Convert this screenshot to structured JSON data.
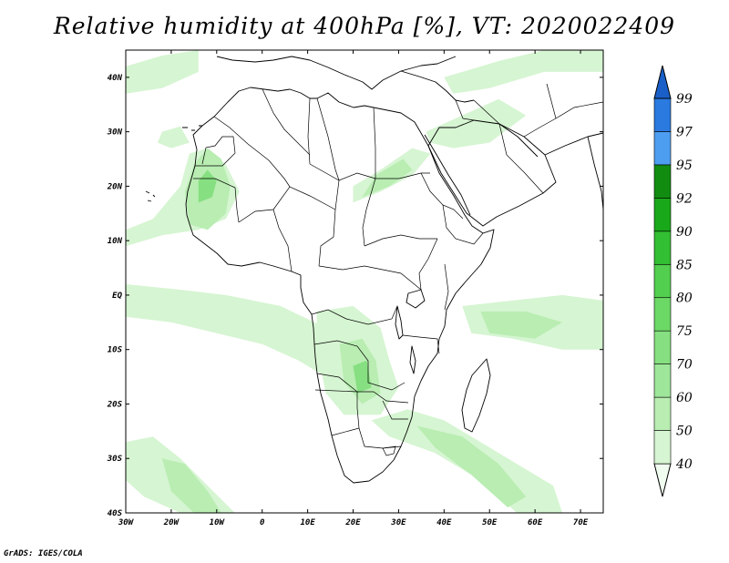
{
  "title": "Relative humidity at 400hPa [%], VT: 2020022409",
  "credit": "GrADS: IGES/COLA",
  "map": {
    "lon_range": [
      -30,
      75
    ],
    "lat_range": [
      -40,
      45
    ],
    "lon_ticks": [
      {
        "value": -30,
        "label": "30W"
      },
      {
        "value": -20,
        "label": "20W"
      },
      {
        "value": -10,
        "label": "10W"
      },
      {
        "value": 0,
        "label": "0"
      },
      {
        "value": 10,
        "label": "10E"
      },
      {
        "value": 20,
        "label": "20E"
      },
      {
        "value": 30,
        "label": "30E"
      },
      {
        "value": 40,
        "label": "40E"
      },
      {
        "value": 50,
        "label": "50E"
      },
      {
        "value": 60,
        "label": "60E"
      },
      {
        "value": 70,
        "label": "70E"
      }
    ],
    "lat_ticks": [
      {
        "value": 40,
        "label": "40N"
      },
      {
        "value": 30,
        "label": "30N"
      },
      {
        "value": 20,
        "label": "20N"
      },
      {
        "value": 10,
        "label": "10N"
      },
      {
        "value": 0,
        "label": "EQ"
      },
      {
        "value": -10,
        "label": "10S"
      },
      {
        "value": -20,
        "label": "20S"
      },
      {
        "value": -30,
        "label": "30S"
      },
      {
        "value": -40,
        "label": "40S"
      }
    ]
  },
  "colorbar": {
    "levels": [
      "40",
      "50",
      "60",
      "70",
      "75",
      "80",
      "85",
      "90",
      "92",
      "95",
      "97",
      "99"
    ],
    "colors": [
      "#f0fcef",
      "#d6f5d2",
      "#b9edb2",
      "#9ee69a",
      "#86df80",
      "#6cd866",
      "#52cf4e",
      "#33bf33",
      "#19a819",
      "#118c11",
      "#4d9ef0",
      "#2a7ae0",
      "#1a5fc8"
    ]
  },
  "humid_regions": [
    {
      "color": "#d6f5d2",
      "pts": [
        [
          -30,
          -4
        ],
        [
          -20,
          -5
        ],
        [
          -10,
          -7
        ],
        [
          0,
          -9
        ],
        [
          8,
          -12
        ],
        [
          14,
          -15
        ],
        [
          14,
          -6
        ],
        [
          4,
          -2
        ],
        [
          -8,
          0
        ],
        [
          -18,
          1
        ],
        [
          -30,
          2
        ]
      ]
    },
    {
      "color": "#d6f5d2",
      "pts": [
        [
          -30,
          9
        ],
        [
          -22,
          11
        ],
        [
          -14,
          12
        ],
        [
          -8,
          14
        ],
        [
          -5,
          19
        ],
        [
          -8,
          24
        ],
        [
          -12,
          27
        ],
        [
          -16,
          26
        ],
        [
          -18,
          20
        ],
        [
          -24,
          14
        ],
        [
          -30,
          12
        ]
      ]
    },
    {
      "color": "#b9edb2",
      "pts": [
        [
          -16,
          13
        ],
        [
          -12,
          12
        ],
        [
          -8,
          15
        ],
        [
          -7,
          20
        ],
        [
          -9,
          25
        ],
        [
          -12,
          27
        ],
        [
          -15,
          24
        ],
        [
          -17,
          19
        ]
      ]
    },
    {
      "color": "#86df80",
      "pts": [
        [
          -14,
          17
        ],
        [
          -11,
          18
        ],
        [
          -10,
          21
        ],
        [
          -12,
          23
        ],
        [
          -14,
          21
        ]
      ]
    },
    {
      "color": "#d6f5d2",
      "pts": [
        [
          12,
          -3
        ],
        [
          20,
          -2
        ],
        [
          26,
          -6
        ],
        [
          28,
          -12
        ],
        [
          30,
          -17
        ],
        [
          26,
          -22
        ],
        [
          18,
          -22
        ],
        [
          14,
          -18
        ],
        [
          12,
          -10
        ]
      ]
    },
    {
      "color": "#b9edb2",
      "pts": [
        [
          17,
          -9
        ],
        [
          22,
          -8
        ],
        [
          25,
          -12
        ],
        [
          26,
          -18
        ],
        [
          22,
          -20
        ],
        [
          18,
          -16
        ]
      ]
    },
    {
      "color": "#86df80",
      "pts": [
        [
          20,
          -13
        ],
        [
          23,
          -12
        ],
        [
          24,
          -17
        ],
        [
          21,
          -18
        ]
      ]
    },
    {
      "color": "#d6f5d2",
      "pts": [
        [
          44,
          -2
        ],
        [
          55,
          -1
        ],
        [
          66,
          0
        ],
        [
          75,
          -1
        ],
        [
          75,
          -10
        ],
        [
          66,
          -10
        ],
        [
          55,
          -8
        ],
        [
          46,
          -7
        ]
      ]
    },
    {
      "color": "#b9edb2",
      "pts": [
        [
          48,
          -3
        ],
        [
          58,
          -3
        ],
        [
          66,
          -5
        ],
        [
          60,
          -8
        ],
        [
          50,
          -7
        ]
      ]
    },
    {
      "color": "#d6f5d2",
      "pts": [
        [
          24,
          -23
        ],
        [
          32,
          -21
        ],
        [
          40,
          -23
        ],
        [
          48,
          -27
        ],
        [
          56,
          -31
        ],
        [
          64,
          -35
        ],
        [
          66,
          -40
        ],
        [
          56,
          -40
        ],
        [
          48,
          -34
        ],
        [
          38,
          -29
        ],
        [
          28,
          -26
        ]
      ]
    },
    {
      "color": "#b9edb2",
      "pts": [
        [
          34,
          -24
        ],
        [
          44,
          -26
        ],
        [
          52,
          -31
        ],
        [
          58,
          -37
        ],
        [
          54,
          -39
        ],
        [
          46,
          -33
        ],
        [
          38,
          -28
        ]
      ]
    },
    {
      "color": "#d6f5d2",
      "pts": [
        [
          -30,
          -27
        ],
        [
          -24,
          -26
        ],
        [
          -18,
          -30
        ],
        [
          -12,
          -35
        ],
        [
          -6,
          -40
        ],
        [
          -18,
          -40
        ],
        [
          -26,
          -37
        ],
        [
          -30,
          -34
        ]
      ]
    },
    {
      "color": "#b9edb2",
      "pts": [
        [
          -22,
          -30
        ],
        [
          -17,
          -31
        ],
        [
          -12,
          -36
        ],
        [
          -9,
          -40
        ],
        [
          -15,
          -40
        ],
        [
          -20,
          -36
        ]
      ]
    },
    {
      "color": "#d6f5d2",
      "pts": [
        [
          20,
          17
        ],
        [
          26,
          19
        ],
        [
          33,
          22
        ],
        [
          37,
          26
        ],
        [
          33,
          27
        ],
        [
          26,
          23
        ],
        [
          20,
          20
        ]
      ]
    },
    {
      "color": "#b9edb2",
      "pts": [
        [
          22,
          18
        ],
        [
          28,
          20
        ],
        [
          33,
          23
        ],
        [
          31,
          25
        ],
        [
          25,
          22
        ]
      ]
    },
    {
      "color": "#d6f5d2",
      "pts": [
        [
          36,
          30
        ],
        [
          44,
          33
        ],
        [
          52,
          36
        ],
        [
          58,
          33
        ],
        [
          50,
          28
        ],
        [
          42,
          27
        ],
        [
          37,
          28
        ]
      ]
    },
    {
      "color": "#d6f5d2",
      "pts": [
        [
          -30,
          42
        ],
        [
          -22,
          44
        ],
        [
          -14,
          45
        ],
        [
          -14,
          41
        ],
        [
          -22,
          38
        ],
        [
          -30,
          37
        ]
      ]
    },
    {
      "color": "#d6f5d2",
      "pts": [
        [
          40,
          40
        ],
        [
          52,
          43
        ],
        [
          62,
          45
        ],
        [
          75,
          45
        ],
        [
          75,
          41
        ],
        [
          62,
          41
        ],
        [
          50,
          38
        ],
        [
          42,
          37
        ]
      ]
    },
    {
      "color": "#d6f5d2",
      "pts": [
        [
          -22,
          30
        ],
        [
          -18,
          31
        ],
        [
          -16,
          28
        ],
        [
          -20,
          27
        ],
        [
          -23,
          28
        ]
      ]
    }
  ]
}
